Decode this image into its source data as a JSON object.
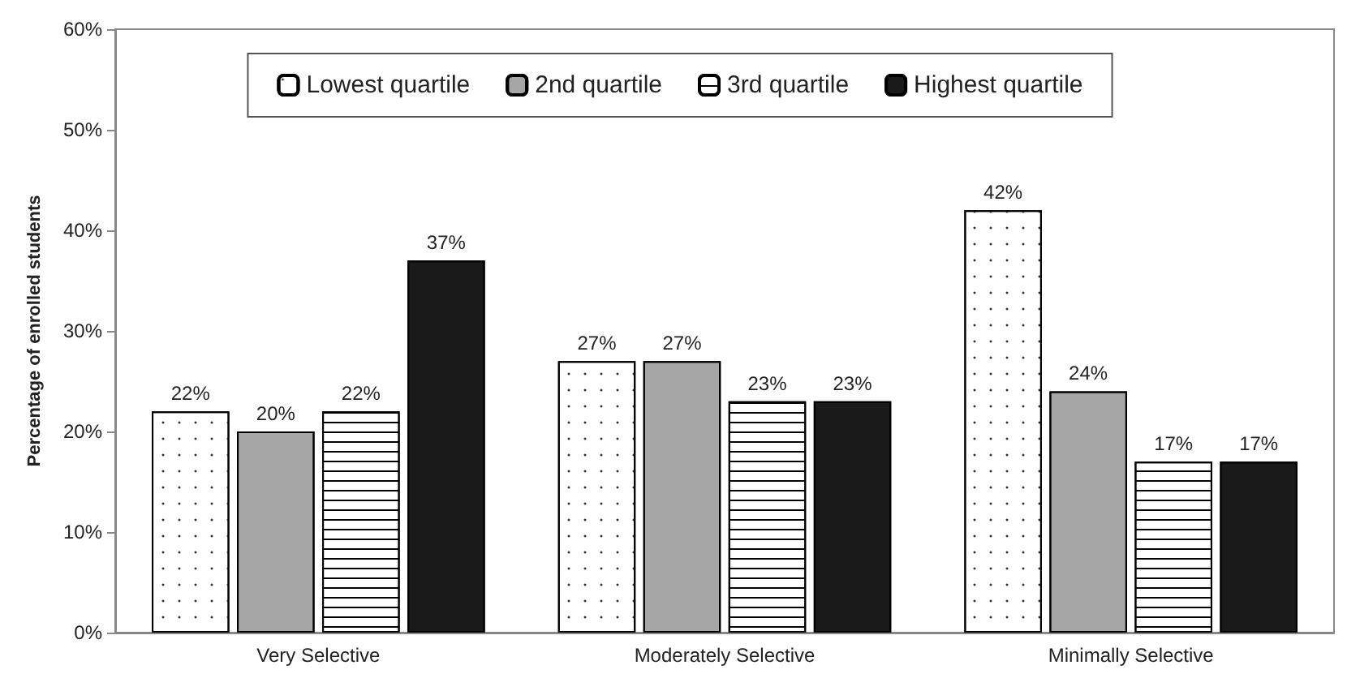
{
  "chart_data": {
    "type": "bar",
    "ylabel": "Percentage of enrolled students",
    "categories": [
      "Very Selective",
      "Moderately Selective",
      "Minimally Selective"
    ],
    "series": [
      {
        "name": "Lowest quartile",
        "color": "#ffffff",
        "values": [
          22,
          27,
          42
        ],
        "value_labels": [
          "22%",
          "27%",
          "42%"
        ]
      },
      {
        "name": "2nd quartile",
        "color": "#a6a6a6",
        "values": [
          20,
          27,
          24
        ],
        "value_labels": [
          "20%",
          "27%",
          "24%"
        ]
      },
      {
        "name": "3rd quartile",
        "color": "#ffffff",
        "values": [
          22,
          23,
          17
        ],
        "value_labels": [
          "22%",
          "23%",
          "17%"
        ]
      },
      {
        "name": "Highest quartile",
        "color": "#1a1a1a",
        "values": [
          37,
          23,
          17
        ],
        "value_labels": [
          "37%",
          "23%",
          "17%"
        ]
      }
    ],
    "ylim": [
      0,
      60
    ],
    "yticks": [
      {
        "value": 0,
        "label": "0%"
      },
      {
        "value": 10,
        "label": "10%"
      },
      {
        "value": 20,
        "label": "20%"
      },
      {
        "value": 30,
        "label": "30%"
      },
      {
        "value": 40,
        "label": "40%"
      },
      {
        "value": 50,
        "label": "50%"
      },
      {
        "value": 60,
        "label": "60%"
      }
    ],
    "legend": "top",
    "grid": false
  }
}
